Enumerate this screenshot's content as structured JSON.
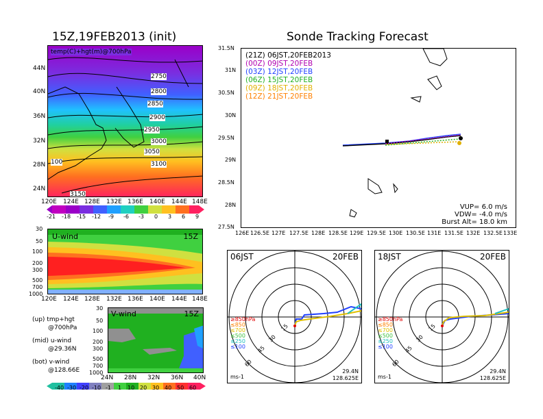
{
  "titles": {
    "left": "15Z,19FEB2013 (init)",
    "right": "Sonde Tracking Forecast"
  },
  "map700": {
    "label": "temp(C)+hgt(m)@700hPa",
    "lat_ticks": [
      "44N",
      "40N",
      "36N",
      "32N",
      "28N",
      "24N"
    ],
    "lon_ticks": [
      "120E",
      "124E",
      "128E",
      "132E",
      "136E",
      "140E",
      "144E",
      "148E"
    ],
    "contours": [
      "2750",
      "2800",
      "2850",
      "2900",
      "2950",
      "3000",
      "3050",
      "3100",
      "100",
      "3150"
    ]
  },
  "temp_colorbar": [
    "-21",
    "-18",
    "-15",
    "-12",
    "-9",
    "-6",
    "-3",
    "0",
    "3",
    "6",
    "9"
  ],
  "uwind": {
    "label": "U-wind",
    "time": "15Z",
    "pressure_ticks": [
      "30",
      "50",
      "100",
      "200",
      "300",
      "500",
      "700",
      "1000"
    ],
    "lon_ticks": [
      "120E",
      "124E",
      "128E",
      "132E",
      "136E",
      "140E",
      "144E",
      "148E"
    ]
  },
  "vwind": {
    "label": "V-wind",
    "time": "15Z",
    "pressure_ticks": [
      "30",
      "50",
      "100",
      "200",
      "300",
      "500",
      "700",
      "1000"
    ],
    "lat_ticks": [
      "24N",
      "28N",
      "32N",
      "36N",
      "40N"
    ]
  },
  "notes": [
    {
      "line1": "(up) tmp+hgt",
      "line2": "@700hPa"
    },
    {
      "line1": "(mid) u-wind",
      "line2": "@29.36N"
    },
    {
      "line1": "(bot) v-wind",
      "line2": "@128.66E"
    }
  ],
  "wind_colorbar": [
    "-40",
    "-30",
    "-20",
    "-10",
    "-1",
    "1",
    "10",
    "20",
    "30",
    "40",
    "50",
    "60"
  ],
  "track": {
    "legend": [
      {
        "z": "(21Z)",
        "t": "06JST,20FEB2013",
        "color": "#000000"
      },
      {
        "z": "(00Z)",
        "t": "09JST,20FEB",
        "color": "#b000b0"
      },
      {
        "z": "(03Z)",
        "t": "12JST,20FEB",
        "color": "#2040ff"
      },
      {
        "z": "(06Z)",
        "t": "15JST,20FEB",
        "color": "#20b020"
      },
      {
        "z": "(09Z)",
        "t": "18JST,20FEB",
        "color": "#e0b000"
      },
      {
        "z": "(12Z)",
        "t": "21JST,20FEB",
        "color": "#ff8000"
      }
    ],
    "lat_ticks": [
      "31.5N",
      "31N",
      "30.5N",
      "30N",
      "29.5N",
      "29N",
      "28.5N",
      "28N",
      "27.5N"
    ],
    "lon_ticks": [
      "126E",
      "126.5E",
      "127E",
      "127.5E",
      "128E",
      "128.5E",
      "129E",
      "129.5E",
      "130E",
      "130.5E",
      "131E",
      "131.5E",
      "132E",
      "132.5E",
      "133E"
    ],
    "params": [
      "VUP= 6.0 m/s",
      "VDW= -4.0 m/s",
      "Burst Alt= 18.0 km"
    ]
  },
  "hodo": [
    {
      "time": "06JST",
      "date": "20FEB",
      "unit": "ms-1",
      "lat": "29.4N",
      "lon": "128.625E"
    },
    {
      "time": "18JST",
      "date": "20FEB",
      "unit": "ms-1",
      "lat": "29.4N",
      "lon": "128.625E"
    }
  ],
  "hodo_rings": [
    "15",
    "30",
    "45",
    "60"
  ],
  "hodo_levels": [
    {
      "label": "≥850hPa",
      "color": "#e00000"
    },
    {
      "label": "≤850",
      "color": "#ff8000"
    },
    {
      "label": "≤700",
      "color": "#e0c000"
    },
    {
      "label": "≤500",
      "color": "#40c040"
    },
    {
      "label": "≤250",
      "color": "#20c0c0"
    },
    {
      "label": "≤100",
      "color": "#2040ff"
    }
  ]
}
